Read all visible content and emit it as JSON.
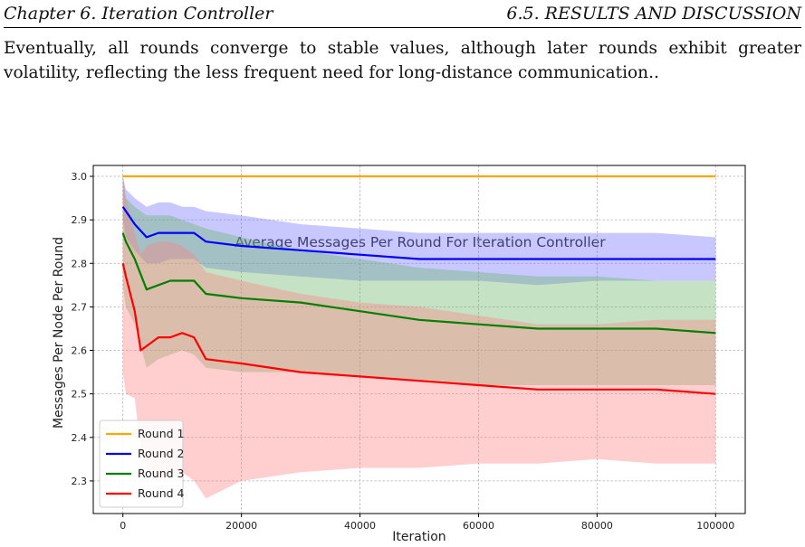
{
  "header": {
    "left": "Chapter 6. Iteration Controller",
    "right": "6.5.  RESULTS AND DISCUSSION"
  },
  "paragraph": "Eventually, all rounds converge to stable values, although later rounds exhibit greater volatility, reflecting the less frequent need for long-distance communication..",
  "chart_data": {
    "type": "line",
    "title": "Average Messages Per Round For Iteration Controller",
    "xlabel": "Iteration",
    "ylabel": "Messages Per Node Per Round",
    "xlim": [
      -5000,
      105000
    ],
    "ylim": [
      2.225,
      3.025
    ],
    "xticks": [
      0,
      20000,
      40000,
      60000,
      80000,
      100000
    ],
    "yticks": [
      2.3,
      2.4,
      2.5,
      2.6,
      2.7,
      2.8,
      2.9,
      3.0
    ],
    "grid": true,
    "legend_position": "lower left",
    "series": [
      {
        "name": "Round 1",
        "color": "#ffa500",
        "band_color": "#ffd27f",
        "x": [
          0,
          100000
        ],
        "mean": [
          3.0,
          3.0
        ],
        "upper": [
          3.0,
          3.0
        ],
        "lower": [
          3.0,
          3.0
        ]
      },
      {
        "name": "Round 2",
        "color": "#0000ff",
        "band_color": "#6f6fff",
        "x": [
          0,
          500,
          2000,
          4000,
          6000,
          8000,
          10000,
          12000,
          14000,
          20000,
          30000,
          40000,
          50000,
          60000,
          70000,
          80000,
          90000,
          100000
        ],
        "mean": [
          2.93,
          2.92,
          2.89,
          2.86,
          2.87,
          2.87,
          2.87,
          2.87,
          2.85,
          2.84,
          2.83,
          2.82,
          2.81,
          2.81,
          2.81,
          2.81,
          2.81,
          2.81
        ],
        "upper": [
          3.0,
          2.97,
          2.95,
          2.93,
          2.94,
          2.94,
          2.93,
          2.93,
          2.92,
          2.91,
          2.89,
          2.88,
          2.87,
          2.87,
          2.87,
          2.87,
          2.87,
          2.86
        ],
        "lower": [
          2.9,
          2.86,
          2.83,
          2.8,
          2.8,
          2.81,
          2.81,
          2.81,
          2.79,
          2.78,
          2.77,
          2.76,
          2.76,
          2.76,
          2.75,
          2.76,
          2.76,
          2.76
        ]
      },
      {
        "name": "Round 3",
        "color": "#008000",
        "band_color": "#66b266",
        "x": [
          0,
          500,
          2000,
          4000,
          6000,
          8000,
          10000,
          12000,
          14000,
          20000,
          30000,
          40000,
          50000,
          60000,
          70000,
          80000,
          90000,
          100000
        ],
        "mean": [
          2.87,
          2.85,
          2.81,
          2.74,
          2.75,
          2.76,
          2.76,
          2.76,
          2.73,
          2.72,
          2.71,
          2.69,
          2.67,
          2.66,
          2.65,
          2.65,
          2.65,
          2.64
        ],
        "upper": [
          3.0,
          2.95,
          2.93,
          2.91,
          2.91,
          2.91,
          2.9,
          2.89,
          2.88,
          2.86,
          2.83,
          2.81,
          2.79,
          2.78,
          2.77,
          2.77,
          2.76,
          2.76
        ],
        "lower": [
          2.75,
          2.7,
          2.66,
          2.56,
          2.58,
          2.59,
          2.6,
          2.59,
          2.56,
          2.55,
          2.55,
          2.54,
          2.53,
          2.52,
          2.52,
          2.52,
          2.52,
          2.52
        ]
      },
      {
        "name": "Round 4",
        "color": "#ff0000",
        "band_color": "#ff8080",
        "x": [
          0,
          500,
          2000,
          3000,
          4000,
          6000,
          8000,
          10000,
          12000,
          14000,
          20000,
          30000,
          40000,
          50000,
          60000,
          70000,
          80000,
          90000,
          100000
        ],
        "mean": [
          2.8,
          2.77,
          2.69,
          2.6,
          2.61,
          2.63,
          2.63,
          2.64,
          2.63,
          2.58,
          2.57,
          2.55,
          2.54,
          2.53,
          2.52,
          2.51,
          2.51,
          2.51,
          2.5
        ],
        "upper": [
          3.0,
          2.95,
          2.87,
          2.82,
          2.84,
          2.85,
          2.85,
          2.84,
          2.82,
          2.78,
          2.76,
          2.73,
          2.71,
          2.7,
          2.68,
          2.66,
          2.66,
          2.67,
          2.67
        ],
        "lower": [
          2.55,
          2.5,
          2.49,
          2.37,
          2.33,
          2.3,
          2.31,
          2.32,
          2.3,
          2.26,
          2.3,
          2.32,
          2.33,
          2.33,
          2.34,
          2.34,
          2.35,
          2.34,
          2.34
        ]
      }
    ]
  }
}
